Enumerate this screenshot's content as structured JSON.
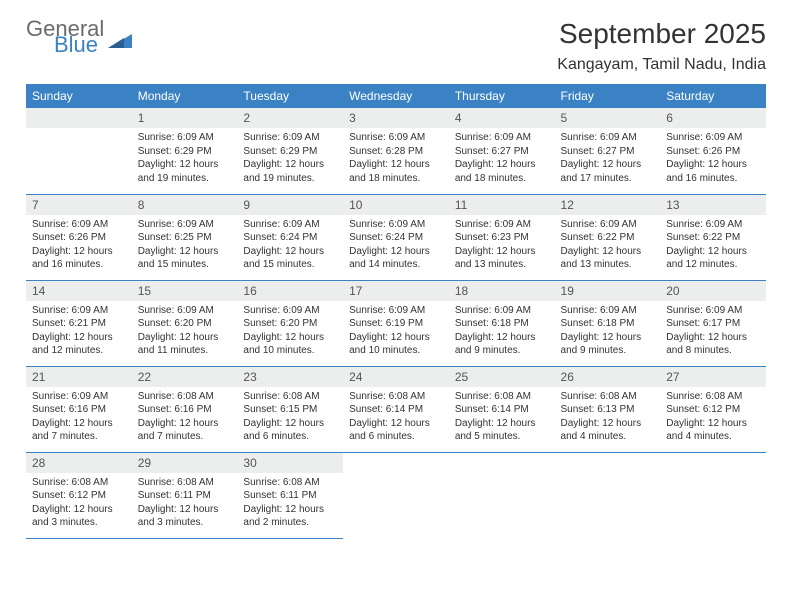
{
  "brand": {
    "part1": "General",
    "part2": "Blue"
  },
  "title": "September 2025",
  "location": "Kangayam, Tamil Nadu, India",
  "colors": {
    "header_bg": "#3b82c4",
    "header_text": "#ffffff",
    "daynum_bg": "#eceded",
    "border": "#3b82c4",
    "text": "#333333",
    "logo_gray": "#6b6b6b",
    "logo_blue": "#3b82c4"
  },
  "weekdays": [
    "Sunday",
    "Monday",
    "Tuesday",
    "Wednesday",
    "Thursday",
    "Friday",
    "Saturday"
  ],
  "leading_blanks": 1,
  "days": [
    {
      "n": "1",
      "sunrise": "6:09 AM",
      "sunset": "6:29 PM",
      "daylight": "12 hours and 19 minutes."
    },
    {
      "n": "2",
      "sunrise": "6:09 AM",
      "sunset": "6:29 PM",
      "daylight": "12 hours and 19 minutes."
    },
    {
      "n": "3",
      "sunrise": "6:09 AM",
      "sunset": "6:28 PM",
      "daylight": "12 hours and 18 minutes."
    },
    {
      "n": "4",
      "sunrise": "6:09 AM",
      "sunset": "6:27 PM",
      "daylight": "12 hours and 18 minutes."
    },
    {
      "n": "5",
      "sunrise": "6:09 AM",
      "sunset": "6:27 PM",
      "daylight": "12 hours and 17 minutes."
    },
    {
      "n": "6",
      "sunrise": "6:09 AM",
      "sunset": "6:26 PM",
      "daylight": "12 hours and 16 minutes."
    },
    {
      "n": "7",
      "sunrise": "6:09 AM",
      "sunset": "6:26 PM",
      "daylight": "12 hours and 16 minutes."
    },
    {
      "n": "8",
      "sunrise": "6:09 AM",
      "sunset": "6:25 PM",
      "daylight": "12 hours and 15 minutes."
    },
    {
      "n": "9",
      "sunrise": "6:09 AM",
      "sunset": "6:24 PM",
      "daylight": "12 hours and 15 minutes."
    },
    {
      "n": "10",
      "sunrise": "6:09 AM",
      "sunset": "6:24 PM",
      "daylight": "12 hours and 14 minutes."
    },
    {
      "n": "11",
      "sunrise": "6:09 AM",
      "sunset": "6:23 PM",
      "daylight": "12 hours and 13 minutes."
    },
    {
      "n": "12",
      "sunrise": "6:09 AM",
      "sunset": "6:22 PM",
      "daylight": "12 hours and 13 minutes."
    },
    {
      "n": "13",
      "sunrise": "6:09 AM",
      "sunset": "6:22 PM",
      "daylight": "12 hours and 12 minutes."
    },
    {
      "n": "14",
      "sunrise": "6:09 AM",
      "sunset": "6:21 PM",
      "daylight": "12 hours and 12 minutes."
    },
    {
      "n": "15",
      "sunrise": "6:09 AM",
      "sunset": "6:20 PM",
      "daylight": "12 hours and 11 minutes."
    },
    {
      "n": "16",
      "sunrise": "6:09 AM",
      "sunset": "6:20 PM",
      "daylight": "12 hours and 10 minutes."
    },
    {
      "n": "17",
      "sunrise": "6:09 AM",
      "sunset": "6:19 PM",
      "daylight": "12 hours and 10 minutes."
    },
    {
      "n": "18",
      "sunrise": "6:09 AM",
      "sunset": "6:18 PM",
      "daylight": "12 hours and 9 minutes."
    },
    {
      "n": "19",
      "sunrise": "6:09 AM",
      "sunset": "6:18 PM",
      "daylight": "12 hours and 9 minutes."
    },
    {
      "n": "20",
      "sunrise": "6:09 AM",
      "sunset": "6:17 PM",
      "daylight": "12 hours and 8 minutes."
    },
    {
      "n": "21",
      "sunrise": "6:09 AM",
      "sunset": "6:16 PM",
      "daylight": "12 hours and 7 minutes."
    },
    {
      "n": "22",
      "sunrise": "6:08 AM",
      "sunset": "6:16 PM",
      "daylight": "12 hours and 7 minutes."
    },
    {
      "n": "23",
      "sunrise": "6:08 AM",
      "sunset": "6:15 PM",
      "daylight": "12 hours and 6 minutes."
    },
    {
      "n": "24",
      "sunrise": "6:08 AM",
      "sunset": "6:14 PM",
      "daylight": "12 hours and 6 minutes."
    },
    {
      "n": "25",
      "sunrise": "6:08 AM",
      "sunset": "6:14 PM",
      "daylight": "12 hours and 5 minutes."
    },
    {
      "n": "26",
      "sunrise": "6:08 AM",
      "sunset": "6:13 PM",
      "daylight": "12 hours and 4 minutes."
    },
    {
      "n": "27",
      "sunrise": "6:08 AM",
      "sunset": "6:12 PM",
      "daylight": "12 hours and 4 minutes."
    },
    {
      "n": "28",
      "sunrise": "6:08 AM",
      "sunset": "6:12 PM",
      "daylight": "12 hours and 3 minutes."
    },
    {
      "n": "29",
      "sunrise": "6:08 AM",
      "sunset": "6:11 PM",
      "daylight": "12 hours and 3 minutes."
    },
    {
      "n": "30",
      "sunrise": "6:08 AM",
      "sunset": "6:11 PM",
      "daylight": "12 hours and 2 minutes."
    }
  ],
  "labels": {
    "sunrise": "Sunrise:",
    "sunset": "Sunset:",
    "daylight": "Daylight:"
  }
}
